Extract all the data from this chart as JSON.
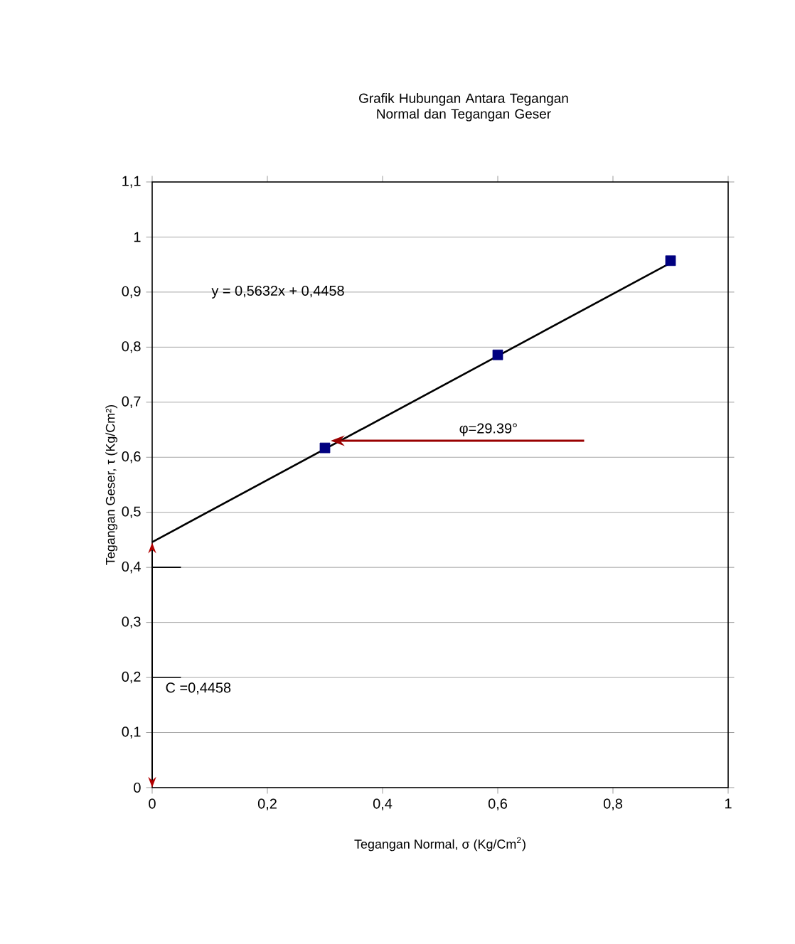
{
  "chart_data": {
    "type": "scatter",
    "title": "Grafik Hubungan Antara Tegangan Normal dan Tegangan Geser",
    "xlabel": "Tegangan Normal, σ (Kg/Cm$^{2}$)",
    "ylabel": "Tegangan Geser, τ (Kg/Cm²)",
    "series": [
      {
        "color": "#000080",
        "marker": "square",
        "x": [
          0.3,
          0.6,
          0.9
        ],
        "values": [
          0.617,
          0.786,
          0.957
        ]
      },
      {
        "type": "line",
        "color": "#000000",
        "marker": "none",
        "x": [
          0,
          0.9
        ],
        "values": [
          0.446,
          0.953
        ]
      }
    ],
    "xlim": [
      0,
      1
    ],
    "ylim": [
      0,
      1.1
    ],
    "xticks": [
      0,
      {
        "value": 0.2,
        "label": "0,2"
      },
      {
        "value": 0.4,
        "label": "0,4"
      },
      {
        "value": 0.6,
        "label": "0,6"
      },
      {
        "value": 0.8,
        "label": "0,8"
      },
      1
    ],
    "yticks": [
      0,
      {
        "value": 0.1,
        "label": "0,1"
      },
      {
        "value": 0.2,
        "label": "0,2"
      },
      {
        "value": 0.3,
        "label": "0,3"
      },
      {
        "value": 0.4,
        "label": "0,4"
      },
      {
        "value": 0.5,
        "label": "0,5"
      },
      {
        "value": 0.6,
        "label": "0,6"
      },
      {
        "value": 0.7,
        "label": "0,7"
      },
      {
        "value": 0.8,
        "label": "0,8"
      },
      {
        "value": 0.9,
        "label": "0,9"
      },
      1,
      {
        "value": 1.1,
        "label": "1,1"
      }
    ],
    "grid": "y",
    "annotations": [
      "y = 0,5632x + 0,4458",
      "φ=29.39°",
      "C =0,4458"
    ]
  }
}
